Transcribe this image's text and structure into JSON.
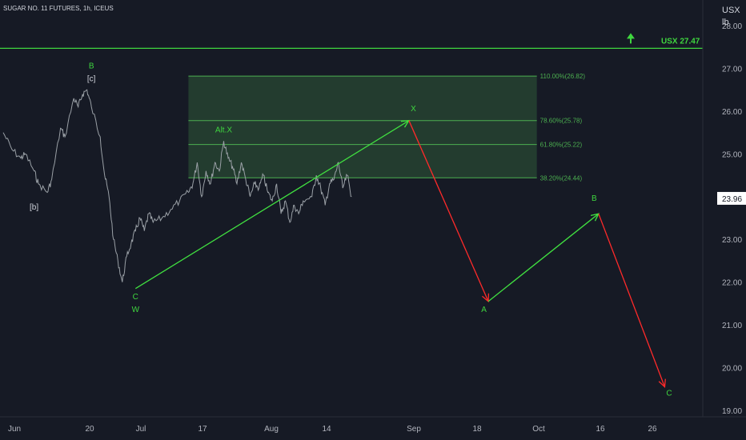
{
  "chart_data": {
    "type": "line",
    "title": "SUGAR NO. 11 FUTURES, 1h, ICEUS",
    "unit_line1": "USX",
    "unit_line2": "lb",
    "ylim": [
      18.85,
      28.6
    ],
    "y_ticks": [
      19,
      20,
      21,
      22,
      23,
      24,
      25,
      26,
      27,
      28
    ],
    "x_ticks": [
      "Jun",
      "20",
      "Jul",
      "17",
      "Aug",
      "14",
      "Sep",
      "18",
      "Oct",
      "16",
      "26"
    ],
    "x_domain_days": [
      0,
      138
    ],
    "x_tick_days": [
      0,
      20,
      30,
      47,
      61,
      75,
      91,
      105,
      121,
      135,
      145
    ],
    "current_price": 23.96,
    "current_price_label": "23.96",
    "target_line": {
      "price": 27.47,
      "label": "USX 27.47",
      "color": "#3fd63f"
    },
    "fib_zone": {
      "x_days": [
        42,
        121
      ],
      "fill": "#2f5a38",
      "levels": [
        {
          "price": 26.82,
          "label": "110.00%(26.82)"
        },
        {
          "price": 25.78,
          "label": "78.60%(25.78)"
        },
        {
          "price": 25.22,
          "label": "61.80%(25.22)"
        },
        {
          "price": 24.44,
          "label": "38.20%(24.44)"
        }
      ]
    },
    "series": [
      {
        "type": "price",
        "color": "#9aa0a6",
        "x": [
          0,
          2,
          4,
          5,
          7,
          8,
          10,
          11,
          13,
          14,
          16,
          17,
          18,
          19,
          20,
          22,
          23,
          24,
          25,
          26,
          27,
          28,
          29,
          30,
          31,
          32,
          33,
          34,
          36,
          38,
          40,
          42,
          43,
          44,
          45,
          46,
          47,
          48,
          49,
          50,
          51,
          52,
          53,
          54,
          55,
          56,
          57,
          58,
          59,
          60,
          61,
          62,
          63,
          64,
          65,
          66,
          67,
          68,
          70,
          71,
          72,
          73,
          74,
          75,
          76,
          77,
          78,
          79
        ],
        "y": [
          25.5,
          25.1,
          24.9,
          25.0,
          24.6,
          24.3,
          24.1,
          24.4,
          25.6,
          25.4,
          26.3,
          26.1,
          26.4,
          26.5,
          26.1,
          25.4,
          24.5,
          24.0,
          23.0,
          22.5,
          22.0,
          22.6,
          22.9,
          23.2,
          23.5,
          23.2,
          23.6,
          23.4,
          23.5,
          23.7,
          23.9,
          24.1,
          24.3,
          24.8,
          24.0,
          24.6,
          24.3,
          24.8,
          24.6,
          25.3,
          24.9,
          24.7,
          24.3,
          24.8,
          24.4,
          24.0,
          24.3,
          24.2,
          24.5,
          24.1,
          23.9,
          24.3,
          23.6,
          23.9,
          23.4,
          23.8,
          23.6,
          23.9,
          24.0,
          24.5,
          24.2,
          23.8,
          24.3,
          24.4,
          24.8,
          24.2,
          24.5,
          24.0
        ]
      },
      {
        "type": "wave",
        "color": "#40e040",
        "x": [
          30,
          92
        ],
        "y": [
          21.85,
          25.78
        ]
      },
      {
        "type": "wave",
        "color": "#ff2a2a",
        "x": [
          92,
          110
        ],
        "y": [
          25.78,
          21.55
        ]
      },
      {
        "type": "wave",
        "color": "#40e040",
        "x": [
          110,
          135
        ],
        "y": [
          21.55,
          23.6
        ]
      },
      {
        "type": "wave",
        "color": "#ff2a2a",
        "x": [
          135,
          150
        ],
        "y": [
          23.6,
          19.55
        ]
      }
    ],
    "wave_labels": [
      {
        "text": "B",
        "x": 20,
        "y": 27.0,
        "color": "#3fd63f"
      },
      {
        "text": "[c]",
        "x": 20,
        "y": 26.7,
        "color": "#d1d4dc"
      },
      {
        "text": "[b]",
        "x": 7,
        "y": 23.7,
        "color": "#d1d4dc"
      },
      {
        "text": "C",
        "x": 30,
        "y": 21.6,
        "color": "#3fd63f"
      },
      {
        "text": "W",
        "x": 30,
        "y": 21.3,
        "color": "#3fd63f"
      },
      {
        "text": "Alt.X",
        "x": 50,
        "y": 25.5,
        "color": "#3fd63f"
      },
      {
        "text": "X",
        "x": 93,
        "y": 26.0,
        "color": "#3fd63f"
      },
      {
        "text": "A",
        "x": 109,
        "y": 21.3,
        "color": "#3fd63f"
      },
      {
        "text": "B",
        "x": 134,
        "y": 23.9,
        "color": "#3fd63f"
      },
      {
        "text": "C",
        "x": 151,
        "y": 19.35,
        "color": "#3fd63f"
      }
    ],
    "grid": false
  }
}
